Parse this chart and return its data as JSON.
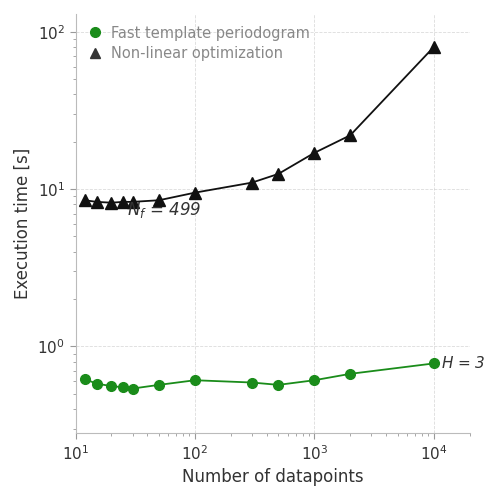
{
  "green_x": [
    12,
    15,
    20,
    25,
    30,
    50,
    100,
    300,
    500,
    1000,
    2000,
    10000
  ],
  "green_y": [
    0.62,
    0.58,
    0.56,
    0.55,
    0.54,
    0.57,
    0.61,
    0.59,
    0.57,
    0.61,
    0.67,
    0.78
  ],
  "black_x": [
    12,
    15,
    20,
    25,
    30,
    50,
    100,
    300,
    500,
    1000,
    2000,
    10000
  ],
  "black_y": [
    8.5,
    8.3,
    8.2,
    8.3,
    8.3,
    8.5,
    9.5,
    11.0,
    12.5,
    17.0,
    22.0,
    80.0
  ],
  "green_color": "#1a8c1a",
  "black_color": "#111111",
  "legend_text_color": "#888888",
  "xlabel": "Number of datapoints",
  "ylabel": "Execution time [s]",
  "xlim": [
    10,
    20000
  ],
  "ylim_low": 0.28,
  "ylim_high": 130,
  "legend_label_green": "Fast template periodogram",
  "legend_label_black": "Non-linear optimization",
  "annotation_nf": "$N_f = 499$",
  "annotation_h": "$H = 3$",
  "grid_color": "#cccccc",
  "background_color": "#ffffff",
  "spine_color": "#bbbbbb"
}
